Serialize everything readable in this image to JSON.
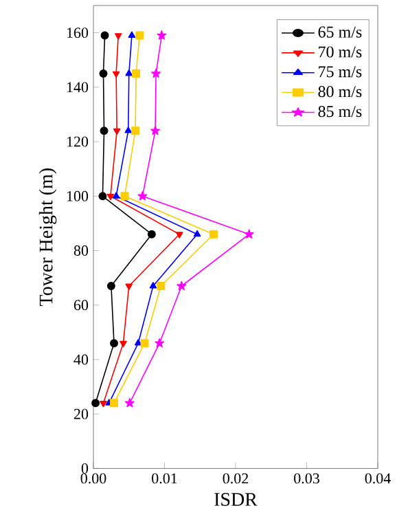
{
  "chart_data": {
    "type": "line",
    "xlabel": "ISDR",
    "ylabel": "Tower Height (m)",
    "xlim": [
      0,
      0.04
    ],
    "xticks": [
      {
        "value": 0,
        "label": "0.00"
      },
      {
        "value": 0.01,
        "label": "0.01"
      },
      {
        "value": 0.02,
        "label": "0.02"
      },
      {
        "value": 0.03,
        "label": "0.03"
      },
      {
        "value": 0.04,
        "label": "0.04"
      }
    ],
    "ylim": [
      0,
      170
    ],
    "yticks": [
      0,
      20,
      40,
      60,
      80,
      100,
      120,
      140,
      160
    ],
    "legend": "top right",
    "grid": false,
    "line_style": "solid",
    "series": [
      {
        "name": "65 m/s",
        "color": "#000000",
        "marker": "circle",
        "x": [
          0.0003,
          0.0029,
          0.0025,
          0.0082,
          0.0013,
          0.0015,
          0.0014,
          0.0016
        ],
        "values": [
          24,
          46,
          67,
          86,
          100,
          124,
          145,
          159
        ]
      },
      {
        "name": "70 m/s",
        "color": "#ff0000",
        "marker": "triangle_down",
        "x": [
          0.0014,
          0.0042,
          0.005,
          0.0121,
          0.0024,
          0.0033,
          0.0032,
          0.0035
        ],
        "values": [
          24,
          46,
          67,
          86,
          100,
          124,
          145,
          159
        ]
      },
      {
        "name": "75 m/s",
        "color": "#0000ff",
        "marker": "triangle",
        "x": [
          0.0022,
          0.0063,
          0.0084,
          0.0146,
          0.0032,
          0.0049,
          0.005,
          0.0054
        ],
        "values": [
          24,
          46,
          67,
          86,
          100,
          124,
          145,
          159
        ]
      },
      {
        "name": "80 m/s",
        "color": "#ffcc00",
        "marker": "square",
        "x": [
          0.0029,
          0.0072,
          0.0095,
          0.0169,
          0.0044,
          0.0059,
          0.006,
          0.0065
        ],
        "values": [
          24,
          46,
          67,
          86,
          100,
          124,
          145,
          159
        ]
      },
      {
        "name": "85 m/s",
        "color": "#ff00ff",
        "marker": "star",
        "x": [
          0.0051,
          0.0093,
          0.0124,
          0.0219,
          0.0069,
          0.0087,
          0.0088,
          0.0096
        ],
        "values": [
          24,
          46,
          67,
          86,
          100,
          124,
          145,
          159
        ]
      }
    ]
  }
}
